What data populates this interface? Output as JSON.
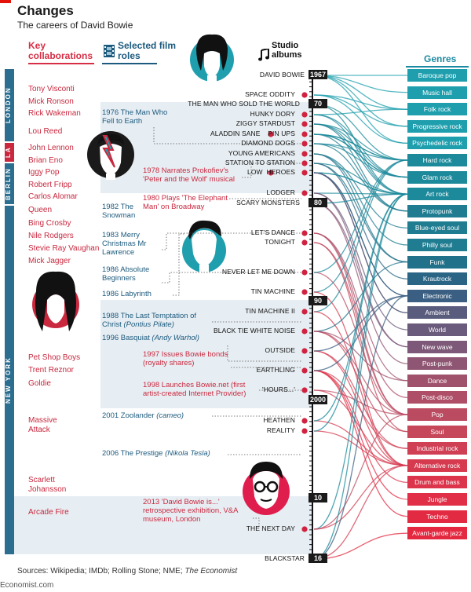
{
  "title": "Changes",
  "subtitle": "The careers of David Bowie",
  "headers": {
    "collaborations": "Key collaborations",
    "film_roles": "Selected film roles",
    "albums": "Studio albums",
    "genres": "Genres"
  },
  "cities": [
    "LONDON",
    "LA",
    "BERLIN",
    "NEW YORK"
  ],
  "collaborations": [
    "Tony Visconti",
    "Mick Ronson",
    "Rick Wakeman",
    "Lou Reed",
    "John Lennon",
    "Brian Eno",
    "Iggy Pop",
    "Robert Fripp",
    "Carlos Alomar",
    "Queen",
    "Bing Crosby",
    "Nile Rodgers",
    "Stevie Ray Vaughan",
    "Mick Jagger",
    "Pet Shop Boys",
    "Trent Reznor",
    "Goldie",
    "Massive Attack",
    "Scarlett Johansson",
    "Arcade Fire"
  ],
  "film_roles": [
    {
      "year": "1976",
      "text": "The Man Who Fell to Earth"
    },
    {
      "year": "1978",
      "text": "Narrates Prokofiev's 'Peter and the Wolf' musical"
    },
    {
      "year": "1980",
      "text": "Plays 'The Elephant Man' on Broadway"
    },
    {
      "year": "1982",
      "text": "The Snowman"
    },
    {
      "year": "1983",
      "text": "Merry Christmas Mr Lawrence"
    },
    {
      "year": "1986",
      "text": "Absolute Beginners"
    },
    {
      "year": "1986",
      "text": "Labyrinth"
    },
    {
      "year": "1988",
      "text": "The Last Temptation of Christ",
      "role": "(Pontius Pilate)"
    },
    {
      "year": "1996",
      "text": "Basquiat",
      "role": "(Andy Warhol)"
    },
    {
      "year": "1997",
      "text": "Issues Bowie bonds (royalty shares)"
    },
    {
      "year": "1998",
      "text": "Launches Bowie.net (first artist-created Internet Provider)"
    },
    {
      "year": "2001",
      "text": "Zoolander",
      "role": "(cameo)"
    },
    {
      "year": "2006",
      "text": "The Prestige",
      "role": "(Nikola Tesla)"
    },
    {
      "year": "2013",
      "text": "'David Bowie is...' retrospective exhibition, V&A museum, London"
    }
  ],
  "albums": [
    "DAVID BOWIE",
    "SPACE ODDITY",
    "THE MAN WHO SOLD THE WORLD",
    "HUNKY DORY",
    "ZIGGY STARDUST",
    "ALADDIN SANE",
    "PIN UPS",
    "DIAMOND DOGS",
    "YOUNG AMERICANS",
    "STATION TO STATION",
    "LOW",
    "HEROES",
    "LODGER",
    "SCARY MONSTERS",
    "LET'S DANCE",
    "TONIGHT",
    "NEVER LET ME DOWN",
    "TIN MACHINE",
    "TIN MACHINE II",
    "BLACK TIE WHITE NOISE",
    "OUTSIDE",
    "EARTHLING",
    "'HOURS...'",
    "HEATHEN",
    "REALITY",
    "THE NEXT DAY",
    "BLACKSTAR"
  ],
  "years": [
    "1967",
    "70",
    "80",
    "90",
    "2000",
    "10",
    "16"
  ],
  "genres": [
    {
      "name": "Baroque pop",
      "color": "#1f9fae"
    },
    {
      "name": "Music hall",
      "color": "#1f9fae"
    },
    {
      "name": "Folk rock",
      "color": "#1f9fae"
    },
    {
      "name": "Progressive rock",
      "color": "#1f9fae"
    },
    {
      "name": "Psychedelic rock",
      "color": "#1f9fae"
    },
    {
      "name": "Hard rock",
      "color": "#1c8a9b"
    },
    {
      "name": "Glam rock",
      "color": "#1c8a9b"
    },
    {
      "name": "Art rock",
      "color": "#1c8a9b"
    },
    {
      "name": "Protopunk",
      "color": "#1f7c91"
    },
    {
      "name": "Blue-eyed soul",
      "color": "#1f7c91"
    },
    {
      "name": "Philly soul",
      "color": "#1f7c91"
    },
    {
      "name": "Funk",
      "color": "#21718a"
    },
    {
      "name": "Krautrock",
      "color": "#2a6585"
    },
    {
      "name": "Electronic",
      "color": "#3b5f82"
    },
    {
      "name": "Ambient",
      "color": "#5a5c7e"
    },
    {
      "name": "World",
      "color": "#6a5a7b"
    },
    {
      "name": "New wave",
      "color": "#7d5878"
    },
    {
      "name": "Post-punk",
      "color": "#8f5673"
    },
    {
      "name": "Dance",
      "color": "#a0526d"
    },
    {
      "name": "Post-disco",
      "color": "#ae4f67"
    },
    {
      "name": "Pop",
      "color": "#bb4b61"
    },
    {
      "name": "Soul",
      "color": "#c6465a"
    },
    {
      "name": "Industrial rock",
      "color": "#cf4055"
    },
    {
      "name": "Alternative rock",
      "color": "#d63a4f"
    },
    {
      "name": "Drum and bass",
      "color": "#dc344a"
    },
    {
      "name": "Jungle",
      "color": "#e02f46"
    },
    {
      "name": "Techno",
      "color": "#e22b43"
    },
    {
      "name": "Avant-garde jazz",
      "color": "#e42840"
    }
  ],
  "colors": {
    "accent_red": "#e3120b",
    "collab_red": "#c9283e",
    "film_blue": "#1c5a7e",
    "band_blue": "#e7eef3",
    "city_blue": "#2b6e8f",
    "city_red": "#c9283e"
  },
  "sources": "Sources: Wikipedia; IMDb; Rolling Stone; NME;",
  "sources_italic": "The Economist",
  "brand": "Economist.com"
}
